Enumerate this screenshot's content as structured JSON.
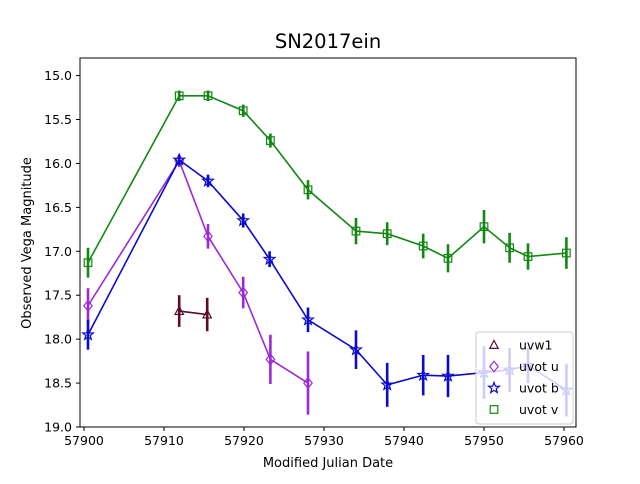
{
  "chart_data": {
    "type": "line",
    "title": "SN2017ein",
    "xlabel": "Modified Julian Date",
    "ylabel": "Observed Vega Magnitude",
    "xlim": [
      57899.5,
      57961.5
    ],
    "ylim": [
      19.0,
      14.8
    ],
    "y_inverted": true,
    "x_ticks": [
      57900,
      57910,
      57920,
      57930,
      57940,
      57950,
      57960
    ],
    "x_tick_labels": [
      "57900",
      "57910",
      "57920",
      "57930",
      "57940",
      "57950",
      "57960"
    ],
    "y_ticks": [
      15.0,
      15.5,
      16.0,
      16.5,
      17.0,
      17.5,
      18.0,
      18.5,
      19.0
    ],
    "y_tick_labels": [
      "15.0",
      "15.5",
      "16.0",
      "16.5",
      "17.0",
      "17.5",
      "18.0",
      "18.5",
      "19.0"
    ],
    "grid": false,
    "legend_position": "bottom-right",
    "series": [
      {
        "name": "uvw1",
        "color": "#5c0a2e",
        "marker": "triangle",
        "connected": true,
        "points": [
          {
            "x": 57911.9,
            "y": 17.68,
            "err": 0.18
          },
          {
            "x": 57915.4,
            "y": 17.72,
            "err": 0.19
          }
        ]
      },
      {
        "name": "uvot u",
        "color": "#9a2bd6",
        "marker": "diamond",
        "connected": true,
        "points": [
          {
            "x": 57900.5,
            "y": 17.62,
            "err": 0.2
          },
          {
            "x": 57911.9,
            "y": 15.97,
            "err": 0.07
          },
          {
            "x": 57915.5,
            "y": 16.83,
            "err": 0.14
          },
          {
            "x": 57919.9,
            "y": 17.47,
            "err": 0.18
          },
          {
            "x": 57923.3,
            "y": 18.23,
            "err": 0.28
          },
          {
            "x": 57928.0,
            "y": 18.5,
            "err": 0.36
          }
        ]
      },
      {
        "name": "uvot b",
        "color": "#0a0ad0",
        "marker": "star",
        "connected": true,
        "points": [
          {
            "x": 57900.5,
            "y": 17.95,
            "err": 0.17
          },
          {
            "x": 57911.9,
            "y": 15.96,
            "err": 0.06
          },
          {
            "x": 57915.5,
            "y": 16.2,
            "err": 0.07
          },
          {
            "x": 57919.9,
            "y": 16.65,
            "err": 0.08
          },
          {
            "x": 57923.2,
            "y": 17.09,
            "err": 0.09
          },
          {
            "x": 57928.0,
            "y": 17.78,
            "err": 0.14
          },
          {
            "x": 57934.0,
            "y": 18.12,
            "err": 0.22
          },
          {
            "x": 57937.9,
            "y": 18.52,
            "err": 0.25
          },
          {
            "x": 57942.4,
            "y": 18.41,
            "err": 0.23
          },
          {
            "x": 57945.5,
            "y": 18.42,
            "err": 0.24
          },
          {
            "x": 57950.0,
            "y": 18.38,
            "err": 0.3
          },
          {
            "x": 57953.2,
            "y": 18.35,
            "err": 0.25
          },
          {
            "x": 57955.5,
            "y": 18.3,
            "err": 0.2
          },
          {
            "x": 57960.3,
            "y": 18.58,
            "err": 0.3
          }
        ]
      },
      {
        "name": "uvot v",
        "color": "#118811",
        "marker": "square",
        "connected": true,
        "points": [
          {
            "x": 57900.5,
            "y": 17.13,
            "err": 0.17
          },
          {
            "x": 57911.9,
            "y": 15.23,
            "err": 0.06
          },
          {
            "x": 57915.5,
            "y": 15.23,
            "err": 0.06
          },
          {
            "x": 57919.9,
            "y": 15.4,
            "err": 0.07
          },
          {
            "x": 57923.3,
            "y": 15.74,
            "err": 0.08
          },
          {
            "x": 57928.0,
            "y": 16.3,
            "err": 0.11
          },
          {
            "x": 57934.0,
            "y": 16.77,
            "err": 0.15
          },
          {
            "x": 57937.9,
            "y": 16.8,
            "err": 0.13
          },
          {
            "x": 57942.4,
            "y": 16.94,
            "err": 0.14
          },
          {
            "x": 57945.5,
            "y": 17.08,
            "err": 0.16
          },
          {
            "x": 57950.0,
            "y": 16.72,
            "err": 0.19
          },
          {
            "x": 57953.2,
            "y": 16.96,
            "err": 0.17
          },
          {
            "x": 57955.5,
            "y": 17.06,
            "err": 0.15
          },
          {
            "x": 57960.3,
            "y": 17.02,
            "err": 0.18
          }
        ]
      }
    ]
  }
}
